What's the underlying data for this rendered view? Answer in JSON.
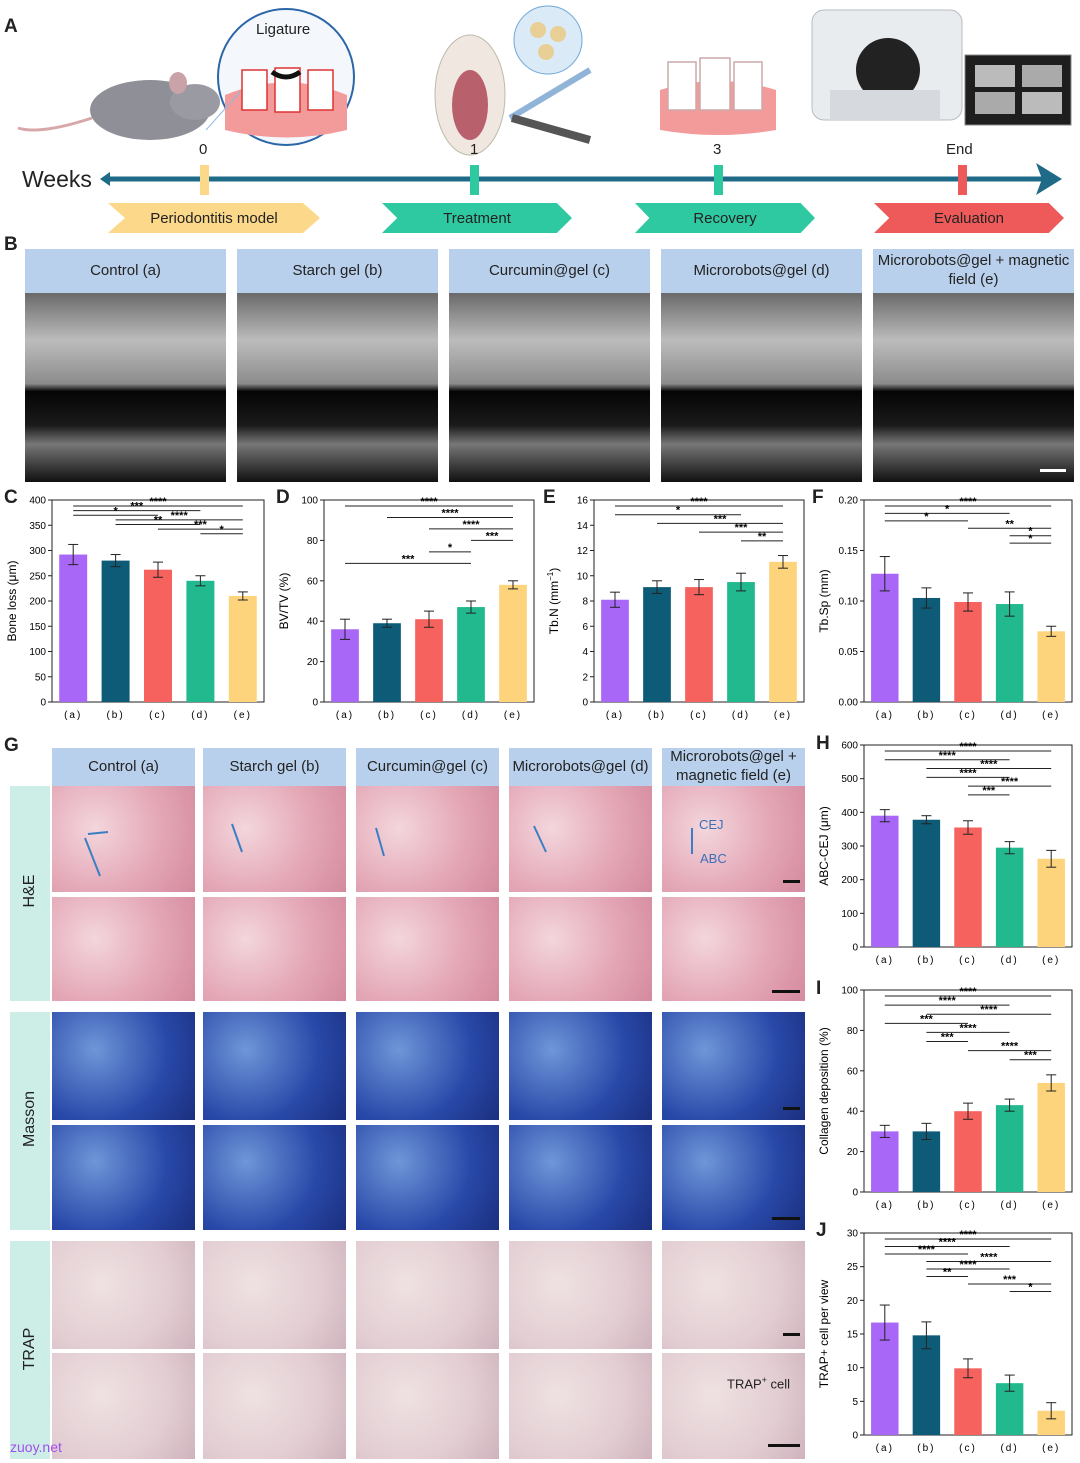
{
  "panels": {
    "A": "A",
    "B": "B",
    "C": "C",
    "D": "D",
    "E": "E",
    "F": "F",
    "G": "G",
    "H": "H",
    "I": "I",
    "J": "J"
  },
  "timeline": {
    "axis_label": "Weeks",
    "ligature_label": "Ligature",
    "week_labels": [
      "0",
      "1",
      "3",
      "End"
    ],
    "stages": [
      "Periodontitis model",
      "Treatment",
      "Recovery",
      "Evaluation"
    ],
    "stage_colors": [
      "#fcd88a",
      "#2ec9a0",
      "#2ec9a0",
      "#ee5a5a"
    ]
  },
  "groups": [
    "Control (a)",
    "Starch gel (b)",
    "Curcumin@gel (c)",
    "Microrobots@gel (d)",
    "Microrobots@gel + magnetic field (e)"
  ],
  "groups_g": [
    "Control (a)",
    "Starch gel (b)",
    "Curcumin@gel (c)",
    "Microrobots@gel (d)",
    "Microrobots@gel + magnetic field (e)"
  ],
  "stains": [
    "H&E",
    "Masson",
    "TRAP"
  ],
  "annotations": {
    "cej": "CEJ",
    "abc": "ABC",
    "trap_cell_pre": "TRAP",
    "trap_cell_sup": "+",
    "trap_cell_post": " cell"
  },
  "watermark": "zuoy.net",
  "bar_colors": [
    "#a867f6",
    "#0e5b78",
    "#f6625e",
    "#22b98f",
    "#fdd47c"
  ],
  "chart_data": [
    {
      "id": "C",
      "type": "bar",
      "ylabel": "Bone loss (μm)",
      "ylim": [
        0,
        400
      ],
      "yticks": [
        0,
        50,
        100,
        150,
        200,
        250,
        300,
        350,
        400
      ],
      "categories": [
        "(a)",
        "(b)",
        "(c)",
        "(d)",
        "(e)"
      ],
      "values": [
        292,
        280,
        262,
        240,
        210
      ],
      "errors": [
        20,
        12,
        15,
        10,
        8
      ],
      "sig": [
        {
          "a": 0,
          "b": 4,
          "t": "****"
        },
        {
          "a": 0,
          "b": 3,
          "t": "***"
        },
        {
          "a": 0,
          "b": 2,
          "t": "*"
        },
        {
          "a": 1,
          "b": 4,
          "t": "****"
        },
        {
          "a": 1,
          "b": 3,
          "t": "**"
        },
        {
          "a": 2,
          "b": 4,
          "t": "***"
        },
        {
          "a": 3,
          "b": 4,
          "t": "*"
        }
      ]
    },
    {
      "id": "D",
      "type": "bar",
      "ylabel": "BV/TV (%)",
      "ylim": [
        0,
        100
      ],
      "yticks": [
        0,
        20,
        40,
        60,
        80,
        100
      ],
      "categories": [
        "(a)",
        "(b)",
        "(c)",
        "(d)",
        "(e)"
      ],
      "values": [
        36,
        39,
        41,
        47,
        58
      ],
      "errors": [
        5,
        2,
        4,
        3,
        2
      ],
      "sig": [
        {
          "a": 0,
          "b": 4,
          "t": "****"
        },
        {
          "a": 1,
          "b": 4,
          "t": "****"
        },
        {
          "a": 2,
          "b": 4,
          "t": "****"
        },
        {
          "a": 3,
          "b": 4,
          "t": "***"
        },
        {
          "a": 2,
          "b": 3,
          "t": "*"
        },
        {
          "a": 0,
          "b": 3,
          "t": "***"
        }
      ]
    },
    {
      "id": "E",
      "type": "bar",
      "ylabel": "Tb.N (mm",
      "ylabel_sup": "−1",
      "ylabel_post": ")",
      "ylim": [
        0,
        16
      ],
      "yticks": [
        0,
        2,
        4,
        6,
        8,
        10,
        12,
        14,
        16
      ],
      "categories": [
        "(a)",
        "(b)",
        "(c)",
        "(d)",
        "(e)"
      ],
      "values": [
        8.1,
        9.1,
        9.1,
        9.5,
        11.1
      ],
      "errors": [
        0.6,
        0.5,
        0.6,
        0.7,
        0.5
      ],
      "sig": [
        {
          "a": 0,
          "b": 4,
          "t": "****"
        },
        {
          "a": 0,
          "b": 3,
          "t": "*"
        },
        {
          "a": 1,
          "b": 4,
          "t": "***"
        },
        {
          "a": 2,
          "b": 4,
          "t": "***"
        },
        {
          "a": 3,
          "b": 4,
          "t": "**"
        }
      ]
    },
    {
      "id": "F",
      "type": "bar",
      "ylabel": "Tb.Sp (mm)",
      "ylim": [
        0,
        0.2
      ],
      "yticks": [
        "0.00",
        "0.05",
        "0.10",
        "0.15",
        "0.20"
      ],
      "categories": [
        "(a)",
        "(b)",
        "(c)",
        "(d)",
        "(e)"
      ],
      "values": [
        0.127,
        0.103,
        0.099,
        0.097,
        0.07
      ],
      "errors": [
        0.017,
        0.01,
        0.009,
        0.012,
        0.005
      ],
      "sig": [
        {
          "a": 0,
          "b": 4,
          "t": "****"
        },
        {
          "a": 0,
          "b": 3,
          "t": "*"
        },
        {
          "a": 0,
          "b": 2,
          "t": "*"
        },
        {
          "a": 2,
          "b": 4,
          "t": "**"
        },
        {
          "a": 3,
          "b": 4,
          "t": "*"
        },
        {
          "a": 3,
          "b": 4,
          "t": "*"
        }
      ]
    },
    {
      "id": "H",
      "type": "bar",
      "ylabel": "ABC-CEJ (μm)",
      "ylim": [
        0,
        600
      ],
      "yticks": [
        0,
        100,
        200,
        300,
        400,
        500,
        600
      ],
      "categories": [
        "(a)",
        "(b)",
        "(c)",
        "(d)",
        "(e)"
      ],
      "values": [
        390,
        378,
        355,
        295,
        262
      ],
      "errors": [
        18,
        12,
        20,
        18,
        25
      ],
      "sig": [
        {
          "a": 0,
          "b": 4,
          "t": "****"
        },
        {
          "a": 0,
          "b": 3,
          "t": "****"
        },
        {
          "a": 1,
          "b": 4,
          "t": "****"
        },
        {
          "a": 1,
          "b": 3,
          "t": "****"
        },
        {
          "a": 2,
          "b": 4,
          "t": "****"
        },
        {
          "a": 2,
          "b": 3,
          "t": "***"
        }
      ]
    },
    {
      "id": "I",
      "type": "bar",
      "ylabel": "Collagen deposition (%)",
      "ylim": [
        0,
        100
      ],
      "yticks": [
        0,
        20,
        40,
        60,
        80,
        100
      ],
      "categories": [
        "(a)",
        "(b)",
        "(c)",
        "(d)",
        "(e)"
      ],
      "values": [
        30,
        30,
        40,
        43,
        54
      ],
      "errors": [
        3,
        4,
        4,
        3,
        4
      ],
      "sig": [
        {
          "a": 0,
          "b": 4,
          "t": "****"
        },
        {
          "a": 0,
          "b": 3,
          "t": "****"
        },
        {
          "a": 1,
          "b": 4,
          "t": "****"
        },
        {
          "a": 0,
          "b": 2,
          "t": "***"
        },
        {
          "a": 1,
          "b": 3,
          "t": "****"
        },
        {
          "a": 1,
          "b": 2,
          "t": "***"
        },
        {
          "a": 2,
          "b": 4,
          "t": "****"
        },
        {
          "a": 3,
          "b": 4,
          "t": "***"
        }
      ]
    },
    {
      "id": "J",
      "type": "bar",
      "ylabel": "TRAP+ cell per view",
      "ylim": [
        0,
        30
      ],
      "yticks": [
        0,
        5,
        10,
        15,
        20,
        25,
        30
      ],
      "categories": [
        "(a)",
        "(b)",
        "(c)",
        "(d)",
        "(e)"
      ],
      "values": [
        16.7,
        14.8,
        9.9,
        7.7,
        3.6
      ],
      "errors": [
        2.6,
        2.0,
        1.4,
        1.2,
        1.2
      ],
      "sig": [
        {
          "a": 0,
          "b": 4,
          "t": "****"
        },
        {
          "a": 0,
          "b": 3,
          "t": "****"
        },
        {
          "a": 0,
          "b": 2,
          "t": "****"
        },
        {
          "a": 1,
          "b": 4,
          "t": "****"
        },
        {
          "a": 1,
          "b": 3,
          "t": "****"
        },
        {
          "a": 1,
          "b": 2,
          "t": "**"
        },
        {
          "a": 2,
          "b": 4,
          "t": "***"
        },
        {
          "a": 3,
          "b": 4,
          "t": "*"
        }
      ]
    }
  ]
}
